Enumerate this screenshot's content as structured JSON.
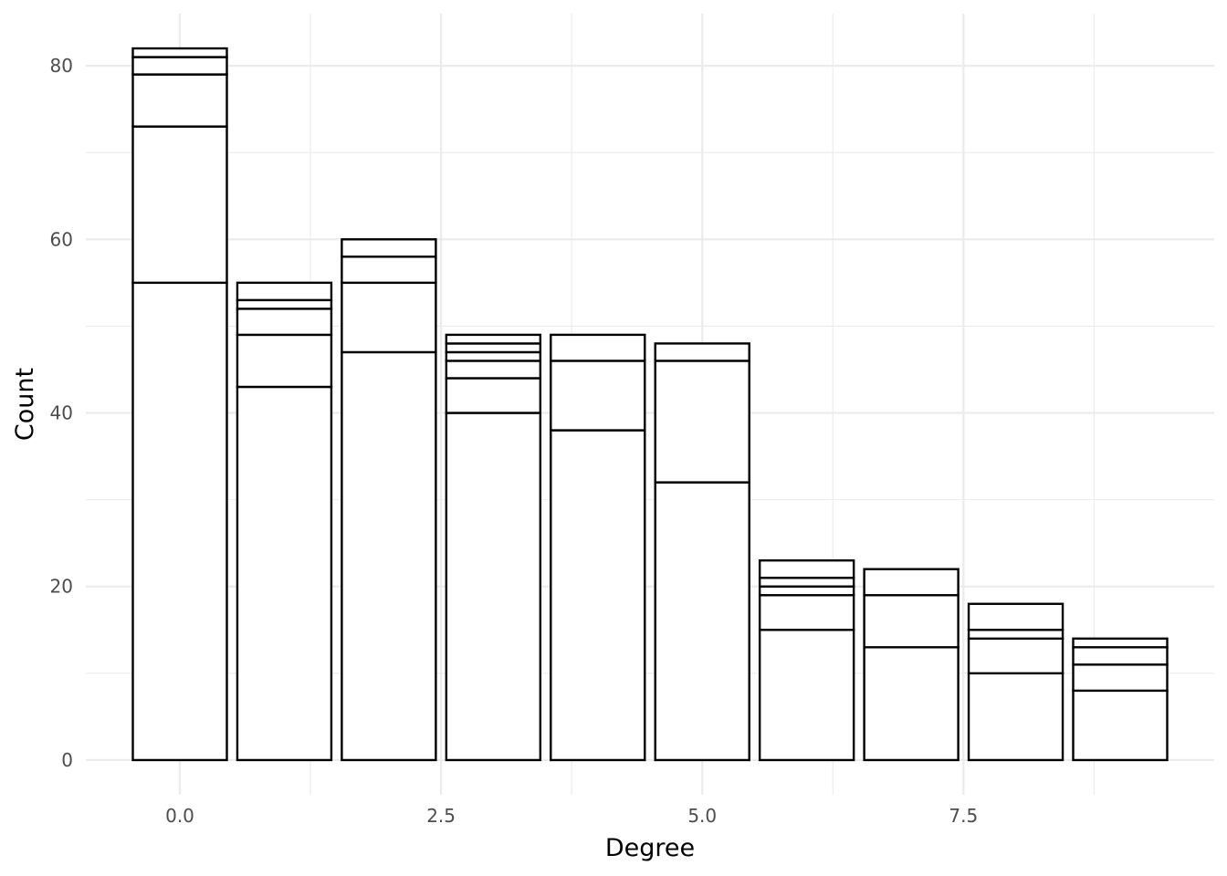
{
  "chart_data": {
    "type": "bar",
    "stacked": true,
    "xlabel": "Degree",
    "ylabel": "Count",
    "xlim": [
      -0.9,
      9.9
    ],
    "ylim": [
      -4,
      86
    ],
    "x_ticks": [
      0.0,
      2.5,
      5.0,
      7.5
    ],
    "x_tick_labels": [
      "0.0",
      "2.5",
      "5.0",
      "7.5"
    ],
    "y_ticks": [
      0,
      20,
      40,
      60,
      80
    ],
    "y_tick_labels": [
      "0",
      "20",
      "40",
      "60",
      "80"
    ],
    "grid": true,
    "legend": "none",
    "colors": {
      "bar_fill": "#ffffff",
      "bar_outline": "#000000",
      "grid": "#ebebeb",
      "tick_text": "#4d4d4d"
    },
    "bars": [
      {
        "x": 0,
        "segment_tops": [
          55,
          73,
          79,
          81,
          82
        ]
      },
      {
        "x": 1,
        "segment_tops": [
          43,
          49,
          52,
          53,
          55
        ]
      },
      {
        "x": 2,
        "segment_tops": [
          47,
          55,
          58,
          60
        ]
      },
      {
        "x": 3,
        "segment_tops": [
          40,
          44,
          46,
          47,
          48,
          49
        ]
      },
      {
        "x": 4,
        "segment_tops": [
          38,
          46,
          49
        ]
      },
      {
        "x": 5,
        "segment_tops": [
          32,
          46,
          48
        ]
      },
      {
        "x": 6,
        "segment_tops": [
          15,
          19,
          20,
          21,
          23
        ]
      },
      {
        "x": 7,
        "segment_tops": [
          13,
          19,
          22
        ]
      },
      {
        "x": 8,
        "segment_tops": [
          10,
          14,
          15,
          18
        ]
      },
      {
        "x": 9,
        "segment_tops": [
          8,
          11,
          13,
          14
        ]
      }
    ]
  }
}
